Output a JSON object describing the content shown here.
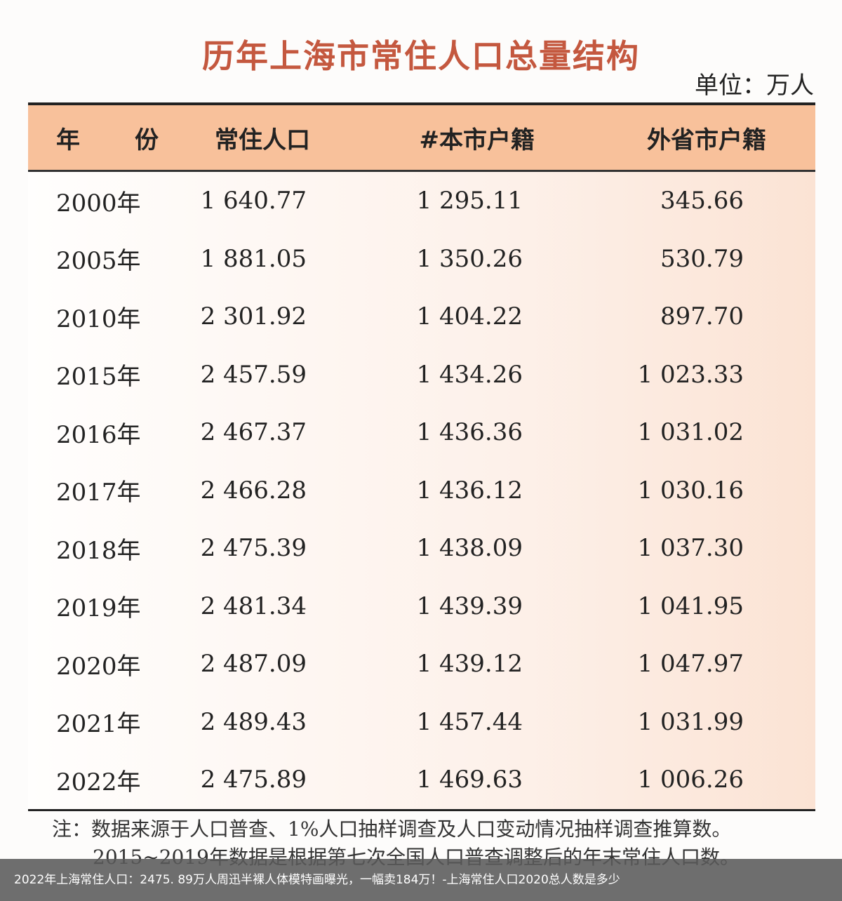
{
  "title": "历年上海市常住人口总量结构",
  "unit": "单位：万人",
  "table": {
    "headers": [
      "年　份",
      "常住人口",
      "#本市户籍",
      "外省市户籍"
    ],
    "rows": [
      [
        "2000年",
        "1 640.77",
        "1 295.11",
        "345.66"
      ],
      [
        "2005年",
        "1 881.05",
        "1 350.26",
        "530.79"
      ],
      [
        "2010年",
        "2 301.92",
        "1 404.22",
        "897.70"
      ],
      [
        "2015年",
        "2 457.59",
        "1 434.26",
        "1 023.33"
      ],
      [
        "2016年",
        "2 467.37",
        "1 436.36",
        "1 031.02"
      ],
      [
        "2017年",
        "2 466.28",
        "1 436.12",
        "1 030.16"
      ],
      [
        "2018年",
        "2 475.39",
        "1 438.09",
        "1 037.30"
      ],
      [
        "2019年",
        "2 481.34",
        "1 439.39",
        "1 041.95"
      ],
      [
        "2020年",
        "2 487.09",
        "1 439.12",
        "1 047.97"
      ],
      [
        "2021年",
        "2 489.43",
        "1 457.44",
        "1 031.99"
      ],
      [
        "2022年",
        "2 475.89",
        "1 469.63",
        "1 006.26"
      ]
    ]
  },
  "notes": [
    "注：数据来源于人口普查、1%人口抽样调查及人口变动情况抽样调查推算数。",
    "2015~2019年数据是根据第七次全国人口普查调整后的年末常住人口数。"
  ],
  "caption": "2022年上海常住人口：2475. 89万人周迅半裸人体模特画曝光，一幅卖184万！-上海常住人口2020总人数是多少",
  "colors": {
    "title": "#c4583f",
    "header_bg": "#f8c19b"
  }
}
